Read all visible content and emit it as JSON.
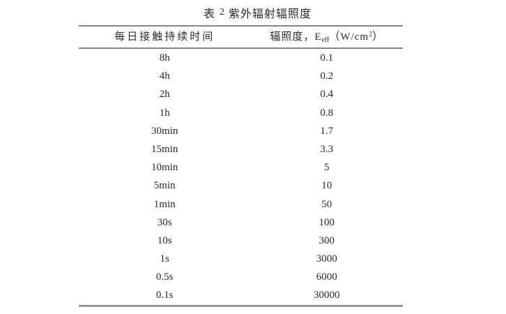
{
  "page": {
    "background": "#ffffff"
  },
  "table": {
    "title": {
      "prefix": "表",
      "number": "2",
      "suffix": "紫外辐射辐照度"
    },
    "header": {
      "col1": "每日接触持续时间",
      "col2": {
        "pre": "辐照度，E",
        "sub": "eff",
        "mid": "（W/cm",
        "sup": "2",
        "post": "）"
      }
    },
    "rows": [
      {
        "duration": "8h",
        "irradiance": "0.1"
      },
      {
        "duration": "4h",
        "irradiance": "0.2"
      },
      {
        "duration": "2h",
        "irradiance": "0.4"
      },
      {
        "duration": "1h",
        "irradiance": "0.8"
      },
      {
        "duration": "30min",
        "irradiance": "1.7"
      },
      {
        "duration": "15min",
        "irradiance": "3.3"
      },
      {
        "duration": "10min",
        "irradiance": "5"
      },
      {
        "duration": "5min",
        "irradiance": "10"
      },
      {
        "duration": "1min",
        "irradiance": "50"
      },
      {
        "duration": "30s",
        "irradiance": "100"
      },
      {
        "duration": "10s",
        "irradiance": "300"
      },
      {
        "duration": "1s",
        "irradiance": "3000"
      },
      {
        "duration": "0.5s",
        "irradiance": "6000"
      },
      {
        "duration": "0.1s",
        "irradiance": "30000"
      }
    ],
    "colors": {
      "rule": "#828282",
      "text": "#2a2a2a",
      "background": "#ffffff"
    }
  },
  "chart_data": {
    "type": "table",
    "title": "表 2 紫外辐射辐照度",
    "columns": [
      "每日接触持续时间",
      "辐照度，Eeff（W/cm2）"
    ],
    "rows": [
      [
        "8h",
        0.1
      ],
      [
        "4h",
        0.2
      ],
      [
        "2h",
        0.4
      ],
      [
        "1h",
        0.8
      ],
      [
        "30min",
        1.7
      ],
      [
        "15min",
        3.3
      ],
      [
        "10min",
        5
      ],
      [
        "5min",
        10
      ],
      [
        "1min",
        50
      ],
      [
        "30s",
        100
      ],
      [
        "10s",
        300
      ],
      [
        "1s",
        3000
      ],
      [
        "0.5s",
        6000
      ],
      [
        "0.1s",
        30000
      ]
    ]
  }
}
